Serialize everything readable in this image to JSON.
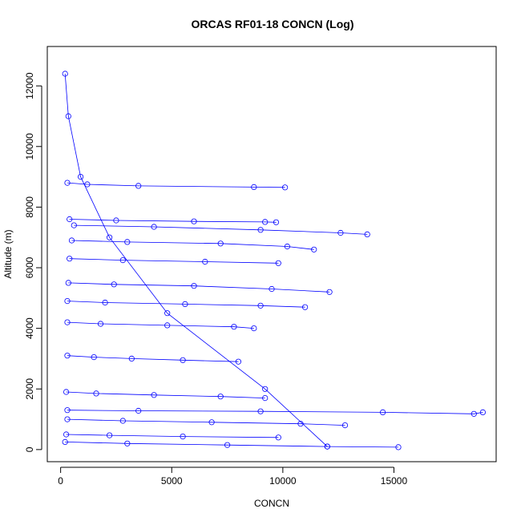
{
  "chart_data": {
    "type": "scatter",
    "title": "ORCAS RF01-18 CONCN (Log)",
    "xlabel": "CONCN",
    "ylabel": "Altitude (m)",
    "xlim": [
      -600,
      19600
    ],
    "ylim": [
      -400,
      13300
    ],
    "x_ticks": [
      0,
      5000,
      10000,
      15000
    ],
    "y_ticks": [
      0,
      2000,
      4000,
      6000,
      8000,
      10000,
      12000
    ],
    "line_color": "#0000FF",
    "marker": "open-circle",
    "series": [
      {
        "name": "",
        "profiles": [
          {
            "x": [
              200,
              350,
              900,
              2200,
              4800,
              9200,
              12000
            ],
            "y": [
              12400,
              11000,
              9000,
              7000,
              4500,
              2000,
              100
            ]
          },
          {
            "x": [
              300,
              1200,
              3500,
              8700,
              10100
            ],
            "y": [
              8800,
              8750,
              8700,
              8660,
              8650
            ]
          },
          {
            "x": [
              400,
              2500,
              6000,
              9200,
              9700
            ],
            "y": [
              7600,
              7560,
              7530,
              7510,
              7500
            ]
          },
          {
            "x": [
              600,
              4200,
              9000,
              12600,
              13800
            ],
            "y": [
              7400,
              7350,
              7250,
              7150,
              7100
            ]
          },
          {
            "x": [
              500,
              3000,
              7200,
              10200,
              11400
            ],
            "y": [
              6900,
              6850,
              6800,
              6700,
              6600
            ]
          },
          {
            "x": [
              400,
              2800,
              6500,
              9800
            ],
            "y": [
              6300,
              6250,
              6200,
              6150
            ]
          },
          {
            "x": [
              350,
              2400,
              6000,
              9500,
              12100
            ],
            "y": [
              5500,
              5450,
              5400,
              5300,
              5200
            ]
          },
          {
            "x": [
              300,
              2000,
              5600,
              9000,
              11000
            ],
            "y": [
              4900,
              4850,
              4800,
              4750,
              4700
            ]
          },
          {
            "x": [
              300,
              1800,
              4800,
              7800,
              8700
            ],
            "y": [
              4200,
              4150,
              4100,
              4050,
              4000
            ]
          },
          {
            "x": [
              300,
              1500,
              3200,
              5500,
              8000
            ],
            "y": [
              3100,
              3050,
              3000,
              2950,
              2900
            ]
          },
          {
            "x": [
              250,
              1600,
              4200,
              7200,
              9200
            ],
            "y": [
              1900,
              1850,
              1800,
              1750,
              1700
            ]
          },
          {
            "x": [
              300,
              3500,
              9000,
              14500,
              18600,
              19000
            ],
            "y": [
              1300,
              1280,
              1260,
              1230,
              1180,
              1230
            ]
          },
          {
            "x": [
              300,
              2800,
              6800,
              10800,
              12800
            ],
            "y": [
              1000,
              950,
              900,
              850,
              800
            ]
          },
          {
            "x": [
              250,
              2200,
              5500,
              9800
            ],
            "y": [
              500,
              470,
              430,
              400
            ]
          },
          {
            "x": [
              200,
              3000,
              7500,
              12000,
              15200
            ],
            "y": [
              250,
              200,
              150,
              100,
              80
            ]
          }
        ]
      }
    ]
  }
}
